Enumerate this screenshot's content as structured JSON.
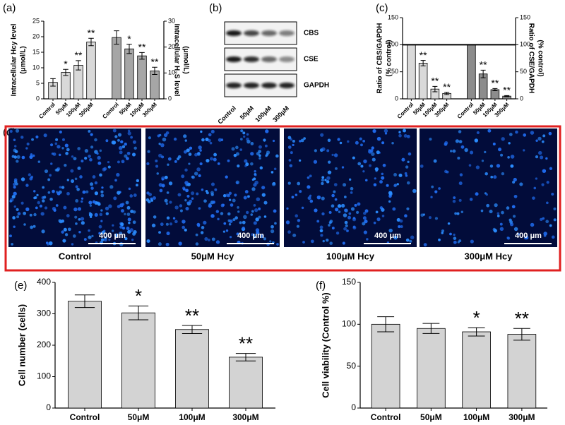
{
  "chart_data": [
    {
      "type": "bar",
      "panel": "(a)",
      "categories": [
        "Control",
        "50μM",
        "100μM",
        "300μM",
        "Control",
        "50μM",
        "100μM",
        "300μM"
      ],
      "ylabel": [
        "Intracellular Hcy level",
        "(μmol/L)"
      ],
      "y2label": [
        "Intracellular H₂S level",
        "(μmol/L)"
      ],
      "ylim": [
        0,
        25
      ],
      "yticks": [
        0,
        5,
        10,
        15,
        20,
        25
      ],
      "y2lim": [
        0,
        30
      ],
      "y2ticks": [
        0,
        10,
        20,
        30
      ],
      "series": [
        {
          "color": "#d9d9d9",
          "values": [
            5.3,
            8.5,
            10.8,
            18.3,
            null,
            null,
            null,
            null
          ],
          "errors": [
            1.2,
            1.0,
            1.5,
            1.2,
            null,
            null,
            null,
            null
          ],
          "markers": [
            null,
            "*",
            "**",
            "**",
            null,
            null,
            null,
            null
          ]
        },
        {
          "color": "#a6a6a6",
          "axis": "y2",
          "values": [
            null,
            null,
            null,
            null,
            23.7,
            19.3,
            16.6,
            10.8
          ],
          "errors": [
            null,
            null,
            null,
            null,
            2.6,
            1.8,
            1.3,
            1.4
          ],
          "markers": [
            null,
            null,
            null,
            null,
            null,
            "*",
            "**",
            "**"
          ]
        }
      ]
    },
    {
      "type": "bar",
      "panel": "(c)",
      "categories": [
        "Control",
        "50μM",
        "100μM",
        "300μM",
        "Control",
        "50μM",
        "100μM",
        "300μM"
      ],
      "ylabel": [
        "Ratio of CBS/GAPDH",
        "(% control)"
      ],
      "y2label": [
        "Ratio of CSE/GAPDH",
        "(% control)"
      ],
      "ylim": [
        0,
        150
      ],
      "yticks": [
        0,
        50,
        100,
        150
      ],
      "y2lim": [
        0,
        150
      ],
      "y2ticks": [
        0,
        50,
        100,
        150
      ],
      "hline": 100,
      "series": [
        {
          "color": "#d9d9d9",
          "values": [
            100,
            66,
            18,
            10,
            null,
            null,
            null,
            null
          ],
          "errors": [
            0,
            5,
            5,
            2,
            null,
            null,
            null,
            null
          ],
          "markers": [
            null,
            "**",
            "**",
            "**",
            null,
            null,
            null,
            null
          ]
        },
        {
          "color": "#8c8c8c",
          "axis": "y2",
          "values": [
            null,
            null,
            null,
            null,
            100,
            46,
            17,
            5
          ],
          "errors": [
            null,
            null,
            null,
            null,
            0,
            7,
            2,
            1
          ],
          "markers": [
            null,
            null,
            null,
            null,
            null,
            "**",
            "**",
            "**"
          ]
        }
      ]
    },
    {
      "type": "bar",
      "panel": "(e)",
      "categories": [
        "Control",
        "50μM",
        "100μM",
        "300μM"
      ],
      "ylabel": [
        "Cell number (cells)"
      ],
      "ylim": [
        0,
        400
      ],
      "yticks": [
        0,
        100,
        200,
        300,
        400
      ],
      "series": [
        {
          "color": "#d3d3d3",
          "values": [
            340,
            303,
            250,
            162
          ],
          "errors": [
            20,
            22,
            13,
            12
          ],
          "markers": [
            null,
            "*",
            "**",
            "**"
          ]
        }
      ]
    },
    {
      "type": "bar",
      "panel": "(f)",
      "categories": [
        "Control",
        "50μM",
        "100μM",
        "300μM"
      ],
      "ylabel": [
        "Cell viability (Control %)"
      ],
      "ylim": [
        0,
        150
      ],
      "yticks": [
        0,
        50,
        100,
        150
      ],
      "series": [
        {
          "color": "#d3d3d3",
          "values": [
            100,
            95,
            91,
            88
          ],
          "errors": [
            9,
            6,
            5,
            7
          ],
          "markers": [
            null,
            null,
            "*",
            "**"
          ]
        }
      ]
    }
  ],
  "blot": {
    "panel": "(b)",
    "rows": [
      "CBS",
      "CSE",
      "GAPDH"
    ],
    "lanes": [
      "Control",
      "50μM",
      "100μM",
      "300μM"
    ]
  },
  "micrographs": {
    "panel": "(d)",
    "labels": [
      "Control",
      "50μM Hcy",
      "100μM Hcy",
      "300μM Hcy"
    ],
    "scale_bar": "400 μm"
  }
}
